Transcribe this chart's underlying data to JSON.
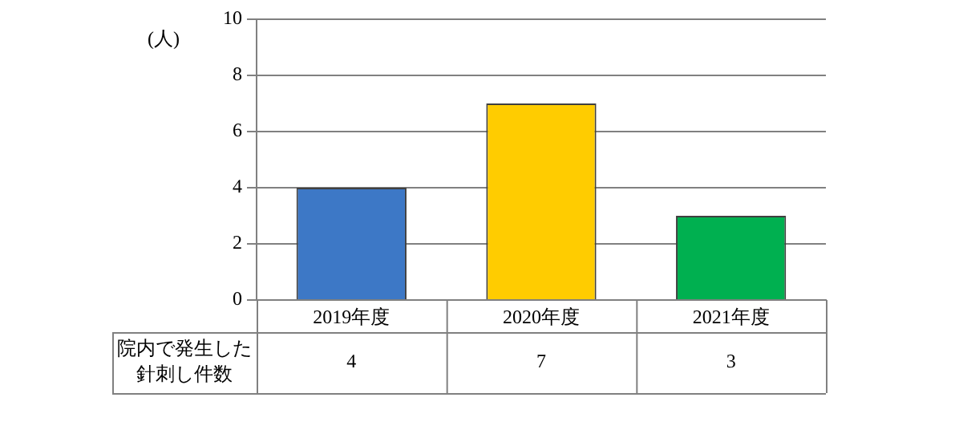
{
  "chart_data": {
    "type": "bar",
    "ylabel": "(人)",
    "categories": [
      "2019年度",
      "2020年度",
      "2021年度"
    ],
    "series": [
      {
        "name": "院内で発生した針刺し件数",
        "colors": [
          "#3d78c6",
          "#ffcc00",
          "#00b050"
        ],
        "values": [
          4,
          7,
          3
        ]
      }
    ],
    "ylim": [
      0,
      10
    ],
    "yticks": [
      0,
      2,
      4,
      6,
      8,
      10
    ],
    "grid": "y",
    "legend": false,
    "data_labels": true
  }
}
